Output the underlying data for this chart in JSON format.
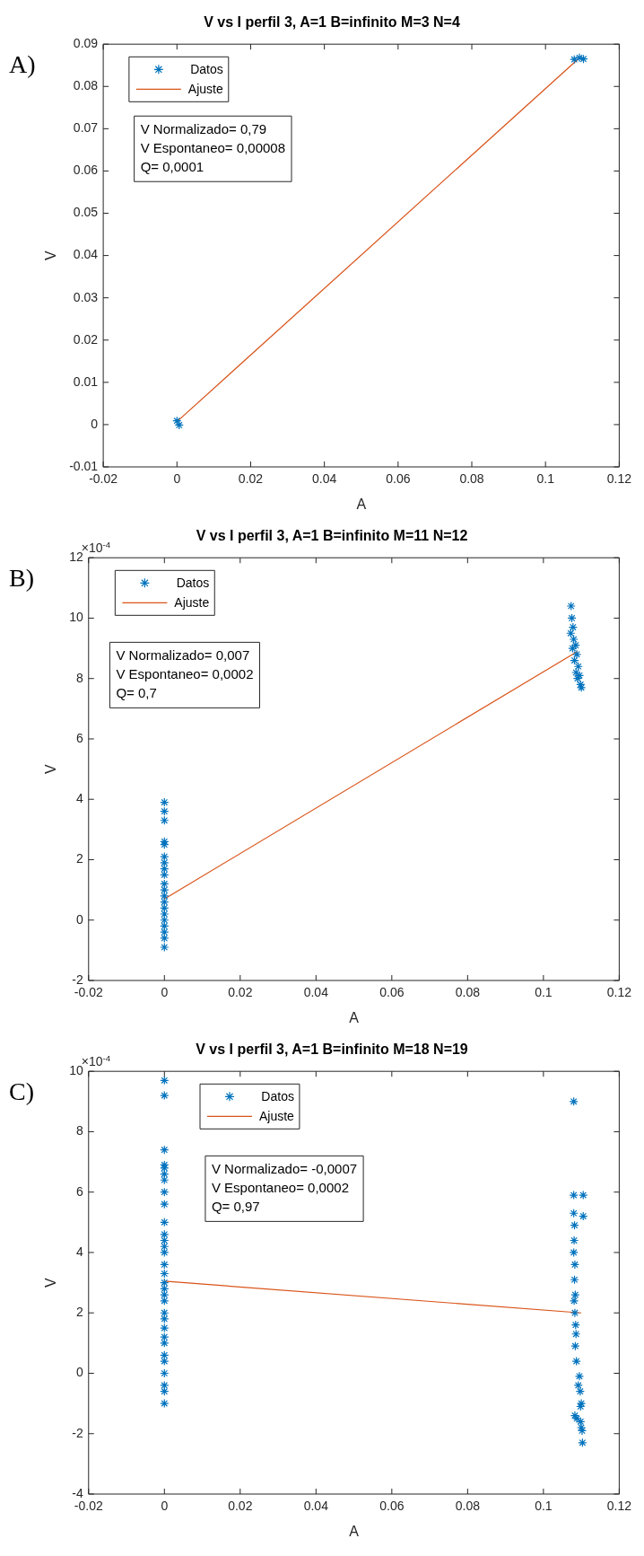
{
  "chart_data": [
    {
      "type": "scatter",
      "title": "V vs I perfil 3, A=1 B=infinito M=3 N=4",
      "xlabel": "A",
      "ylabel": "V",
      "legend": "top left",
      "grid": false,
      "xlim": [
        -0.02,
        0.12
      ],
      "xticks": [
        -0.02,
        0,
        0.02,
        0.04,
        0.06,
        0.08,
        0.1,
        0.12
      ],
      "ylim": [
        -0.01,
        0.09
      ],
      "yticks": [
        -0.01,
        0,
        0.01,
        0.02,
        0.03,
        0.04,
        0.05,
        0.06,
        0.07,
        0.08,
        0.09
      ],
      "annotations": [
        "A)",
        "V Normalizado= 0,79",
        "V Espontaneo= 0,00008",
        "Q= 0,0001"
      ],
      "series": [
        {
          "name": "Datos",
          "type": "scatter",
          "marker": "cross",
          "color": "#0072bd",
          "x": [
            0,
            0.0006,
            0.1078,
            0.1092,
            0.1103
          ],
          "values": [
            0.0009,
            -0.0001,
            0.0864,
            0.0868,
            0.0865
          ]
        },
        {
          "name": "Ajuste",
          "type": "line",
          "marker": "none",
          "color": "#d95319",
          "x": [
            0,
            0.109
          ],
          "values": [
            0.0007,
            0.0866
          ]
        }
      ]
    },
    {
      "type": "scatter",
      "title": "V vs I perfil 3, A=1 B=infinito M=11 N=12",
      "xlabel": "A",
      "ylabel": "V",
      "legend": "top left",
      "grid": false,
      "xlim": [
        -0.02,
        0.12
      ],
      "xticks": [
        -0.02,
        0,
        0.02,
        0.04,
        0.06,
        0.08,
        0.1,
        0.12
      ],
      "ylim": [
        -2,
        12
      ],
      "yticks": [
        -2,
        0,
        2,
        4,
        6,
        8,
        10,
        12
      ],
      "annotations": [
        "B)",
        "×10$^{-4}$",
        "V Normalizado= 0,007",
        "V Espontaneo= 0,0002",
        "Q= 0,7"
      ],
      "series": [
        {
          "name": "Datos",
          "type": "scatter",
          "marker": "cross",
          "color": "#0072bd",
          "x": [
            0,
            0,
            0,
            0,
            0,
            0,
            0,
            0,
            0,
            0,
            0,
            0,
            0,
            0,
            0,
            0,
            0,
            0,
            0,
            0,
            0.1073,
            0.1075,
            0.1078,
            0.1072,
            0.108,
            0.1085,
            0.1077,
            0.1088,
            0.1082,
            0.1092,
            0.1086,
            0.1095,
            0.109,
            0.1098,
            0.11
          ],
          "values": [
            3.9,
            3.6,
            3.3,
            2.6,
            2.5,
            2.1,
            1.9,
            1.7,
            1.5,
            1.2,
            1,
            0.8,
            0.6,
            0.4,
            0.2,
            0,
            -0.2,
            -0.4,
            -0.6,
            -0.9,
            10.4,
            10,
            9.7,
            9.5,
            9.3,
            9.1,
            9,
            8.8,
            8.6,
            8.4,
            8.2,
            8.1,
            8,
            7.8,
            7.7
          ]
        },
        {
          "name": "Ajuste",
          "type": "line",
          "marker": "none",
          "color": "#d95319",
          "x": [
            0,
            0.109
          ],
          "values": [
            0.7,
            8.9
          ]
        }
      ]
    },
    {
      "type": "scatter",
      "title": "V vs I perfil 3, A=1 B=infinito M=18 N=19",
      "xlabel": "A",
      "ylabel": "V",
      "legend": "top left",
      "grid": false,
      "xlim": [
        -0.02,
        0.12
      ],
      "xticks": [
        -0.02,
        0,
        0.02,
        0.04,
        0.06,
        0.08,
        0.1,
        0.12
      ],
      "ylim": [
        -4,
        10
      ],
      "yticks": [
        -4,
        -2,
        0,
        2,
        4,
        6,
        8,
        10
      ],
      "annotations": [
        "C)",
        "×10$^{-4}$",
        "V Normalizado= -0,0007",
        "V Espontaneo= 0,0002",
        "Q= 0,97"
      ],
      "series": [
        {
          "name": "Datos",
          "type": "scatter",
          "marker": "cross",
          "color": "#0072bd",
          "x": [
            0,
            0,
            0,
            0,
            0,
            0,
            0,
            0,
            0,
            0,
            0,
            0,
            0,
            0,
            0,
            0,
            0,
            0,
            0,
            0,
            0,
            0,
            0,
            0,
            0,
            0,
            0,
            0,
            0,
            0,
            0,
            0.108,
            0.108,
            0.1105,
            0.1105,
            0.108,
            0.1082,
            0.1081,
            0.108,
            0.1083,
            0.1082,
            0.1084,
            0.1081,
            0.1083,
            0.1085,
            0.1086,
            0.1084,
            0.1087,
            0.1095,
            0.1092,
            0.1097,
            0.1083,
            0.11,
            0.1098,
            0.1102,
            0.1088,
            0.11,
            0.1098,
            0.1103
          ],
          "values": [
            9.7,
            9.2,
            7.4,
            6.9,
            6.8,
            6.6,
            6.4,
            6,
            5.6,
            5,
            4.6,
            4.4,
            4.2,
            4,
            3.6,
            3.3,
            3,
            2.8,
            2.6,
            2.4,
            2,
            1.8,
            1.5,
            1.2,
            1,
            0.6,
            0.4,
            0,
            -0.4,
            -0.6,
            -1,
            9,
            5.9,
            5.9,
            5.2,
            5.3,
            4.9,
            4.4,
            4,
            3.6,
            3.1,
            2.6,
            2.4,
            2,
            1.6,
            1.3,
            0.9,
            0.4,
            -0.1,
            -0.4,
            -0.6,
            -1.4,
            -1,
            -1.6,
            -1.9,
            -1.5,
            -1.8,
            -1.1,
            -2.3
          ]
        },
        {
          "name": "Ajuste",
          "type": "line",
          "marker": "none",
          "color": "#d95319",
          "x": [
            0,
            0.11
          ],
          "values": [
            3.05,
            2
          ]
        }
      ]
    }
  ]
}
